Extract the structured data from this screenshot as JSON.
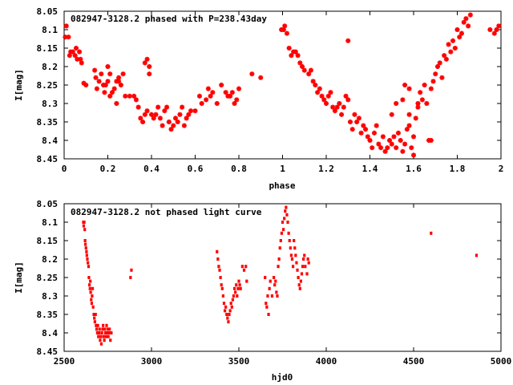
{
  "chart_data": [
    {
      "type": "scatter",
      "title": "082947-3128.2 phased with P=238.43day",
      "xlabel": "phase",
      "ylabel": "I[mag]",
      "xlim": [
        0,
        2
      ],
      "ylim": [
        8.45,
        8.05
      ],
      "y_inverted": true,
      "xticks": [
        "0",
        "0.2",
        "0.4",
        "0.6",
        "0.8",
        "1",
        "1.2",
        "1.4",
        "1.6",
        "1.8",
        "2"
      ],
      "yticks": [
        "8.05",
        "8.1",
        "8.15",
        "8.2",
        "8.25",
        "8.3",
        "8.35",
        "8.4",
        "8.45"
      ],
      "marker": "star",
      "color": "#ff0000",
      "grid": false,
      "x": [
        0.005,
        0.01,
        0.02,
        0.03,
        0.025,
        0.04,
        0.05,
        0.055,
        0.06,
        0.07,
        0.075,
        0.08,
        0.09,
        0.1,
        0.14,
        0.145,
        0.15,
        0.16,
        0.17,
        0.18,
        0.185,
        0.19,
        0.2,
        0.21,
        0.22,
        0.23,
        0.24,
        0.25,
        0.26,
        0.27,
        0.28,
        0.2,
        0.21,
        0.24,
        0.25,
        0.3,
        0.32,
        0.33,
        0.34,
        0.35,
        0.36,
        0.37,
        0.38,
        0.37,
        0.38,
        0.39,
        0.39,
        0.4,
        0.41,
        0.42,
        0.43,
        0.44,
        0.45,
        0.46,
        0.47,
        0.48,
        0.49,
        0.5,
        0.51,
        0.52,
        0.53,
        0.54,
        0.55,
        0.56,
        0.57,
        0.58,
        0.6,
        0.62,
        0.63,
        0.65,
        0.66,
        0.67,
        0.68,
        0.7,
        0.72,
        0.74,
        0.75,
        0.76,
        0.77,
        0.78,
        0.79,
        0.8,
        0.86,
        0.9,
        0.995,
        1.005,
        1.01,
        1.02,
        1.03,
        1.04,
        1.05,
        1.06,
        1.07,
        1.08,
        1.09,
        1.1,
        1.12,
        1.13,
        1.14,
        1.15,
        1.16,
        1.17,
        1.18,
        1.19,
        1.2,
        1.21,
        1.22,
        1.23,
        1.24,
        1.25,
        1.26,
        1.27,
        1.28,
        1.29,
        1.3,
        1.31,
        1.32,
        1.33,
        1.34,
        1.35,
        1.36,
        1.37,
        1.38,
        1.39,
        1.4,
        1.41,
        1.42,
        1.43,
        1.44,
        1.45,
        1.46,
        1.47,
        1.48,
        1.49,
        1.5,
        1.51,
        1.52,
        1.53,
        1.54,
        1.55,
        1.56,
        1.57,
        1.58,
        1.59,
        1.6,
        1.61,
        1.62,
        1.63,
        1.64,
        1.65,
        1.66,
        1.67,
        1.68,
        1.69,
        1.7,
        1.71,
        1.72,
        1.73,
        1.74,
        1.75,
        1.76,
        1.77,
        1.78,
        1.79,
        1.8,
        1.81,
        1.82,
        1.83,
        1.84,
        1.85,
        1.86,
        1.95,
        1.97,
        1.98,
        1.99,
        1.3,
        1.5,
        1.52,
        1.55,
        1.58,
        1.6,
        1.62,
        1.58,
        1.56,
        1.68
      ],
      "y": [
        8.12,
        8.09,
        8.12,
        8.16,
        8.17,
        8.16,
        8.17,
        8.15,
        8.18,
        8.16,
        8.18,
        8.19,
        8.245,
        8.25,
        8.21,
        8.23,
        8.26,
        8.24,
        8.22,
        8.25,
        8.27,
        8.25,
        8.24,
        8.22,
        8.27,
        8.26,
        8.24,
        8.23,
        8.25,
        8.22,
        8.28,
        8.2,
        8.28,
        8.3,
        8.24,
        8.28,
        8.28,
        8.29,
        8.31,
        8.34,
        8.35,
        8.33,
        8.32,
        8.19,
        8.18,
        8.2,
        8.22,
        8.33,
        8.34,
        8.33,
        8.31,
        8.34,
        8.36,
        8.32,
        8.31,
        8.35,
        8.37,
        8.36,
        8.34,
        8.35,
        8.33,
        8.31,
        8.36,
        8.34,
        8.33,
        8.32,
        8.32,
        8.28,
        8.3,
        8.29,
        8.26,
        8.28,
        8.27,
        8.3,
        8.25,
        8.27,
        8.28,
        8.28,
        8.27,
        8.3,
        8.29,
        8.26,
        8.22,
        8.23,
        8.1,
        8.1,
        8.09,
        8.11,
        8.15,
        8.17,
        8.16,
        8.16,
        8.17,
        8.19,
        8.2,
        8.21,
        8.22,
        8.21,
        8.24,
        8.25,
        8.27,
        8.26,
        8.28,
        8.29,
        8.3,
        8.28,
        8.27,
        8.31,
        8.32,
        8.31,
        8.3,
        8.33,
        8.31,
        8.28,
        8.29,
        8.35,
        8.37,
        8.33,
        8.35,
        8.34,
        8.38,
        8.36,
        8.37,
        8.39,
        8.4,
        8.42,
        8.38,
        8.36,
        8.41,
        8.42,
        8.39,
        8.43,
        8.42,
        8.4,
        8.41,
        8.39,
        8.42,
        8.38,
        8.4,
        8.43,
        8.41,
        8.37,
        8.36,
        8.42,
        8.39,
        8.34,
        8.31,
        8.27,
        8.29,
        8.25,
        8.3,
        8.4,
        8.26,
        8.24,
        8.22,
        8.2,
        8.19,
        8.23,
        8.17,
        8.18,
        8.14,
        8.16,
        8.13,
        8.15,
        8.1,
        8.12,
        8.11,
        8.08,
        8.07,
        8.09,
        8.06,
        8.1,
        8.11,
        8.1,
        8.09,
        8.13,
        8.33,
        8.3,
        8.29,
        8.33,
        8.44,
        8.3,
        8.26,
        8.25,
        8.4
      ]
    },
    {
      "type": "scatter",
      "title": "082947-3128.2 not phased light curve",
      "xlabel": "hjd0",
      "ylabel": "I[mag]",
      "xlim": [
        2500,
        5000
      ],
      "ylim": [
        8.45,
        8.05
      ],
      "y_inverted": true,
      "xticks": [
        "2500",
        "3000",
        "3500",
        "4000",
        "4500",
        "5000"
      ],
      "yticks": [
        "8.05",
        "8.1",
        "8.15",
        "8.2",
        "8.25",
        "8.3",
        "8.35",
        "8.4",
        "8.45"
      ],
      "marker": "dot",
      "color": "#ff0000",
      "grid": false,
      "x": [
        2610,
        2612,
        2615,
        2618,
        2620,
        2622,
        2625,
        2628,
        2630,
        2633,
        2636,
        2640,
        2642,
        2645,
        2648,
        2650,
        2652,
        2655,
        2658,
        2660,
        2663,
        2666,
        2670,
        2673,
        2676,
        2680,
        2683,
        2686,
        2690,
        2693,
        2696,
        2700,
        2703,
        2706,
        2710,
        2713,
        2716,
        2720,
        2723,
        2726,
        2730,
        2733,
        2736,
        2740,
        2743,
        2746,
        2750,
        2753,
        2756,
        2760,
        2765,
        2770,
        2880,
        2885,
        3375,
        3380,
        3385,
        3390,
        3395,
        3400,
        3405,
        3410,
        3415,
        3420,
        3425,
        3430,
        3435,
        3440,
        3445,
        3450,
        3455,
        3460,
        3465,
        3470,
        3475,
        3480,
        3485,
        3490,
        3495,
        3500,
        3505,
        3510,
        3520,
        3530,
        3540,
        3545,
        3650,
        3655,
        3660,
        3665,
        3670,
        3675,
        3680,
        3690,
        3700,
        3705,
        3710,
        3715,
        3720,
        3725,
        3730,
        3735,
        3740,
        3745,
        3750,
        3755,
        3760,
        3765,
        3770,
        3775,
        3780,
        3785,
        3790,
        3795,
        3800,
        3805,
        3810,
        3815,
        3820,
        3825,
        3830,
        3835,
        3840,
        3845,
        3850,
        3855,
        3860,
        3865,
        3870,
        3875,
        3880,
        3890,
        3895,
        3900,
        4600,
        4860
      ],
      "y": [
        8.1,
        8.11,
        8.1,
        8.12,
        8.15,
        8.16,
        8.17,
        8.18,
        8.19,
        8.2,
        8.21,
        8.22,
        8.25,
        8.27,
        8.28,
        8.26,
        8.29,
        8.31,
        8.32,
        8.3,
        8.28,
        8.33,
        8.35,
        8.36,
        8.37,
        8.35,
        8.38,
        8.39,
        8.4,
        8.38,
        8.41,
        8.4,
        8.39,
        8.42,
        8.41,
        8.43,
        8.4,
        8.39,
        8.38,
        8.41,
        8.42,
        8.39,
        8.4,
        8.41,
        8.38,
        8.4,
        8.39,
        8.41,
        8.4,
        8.39,
        8.42,
        8.4,
        8.25,
        8.23,
        8.18,
        8.2,
        8.22,
        8.23,
        8.25,
        8.27,
        8.28,
        8.3,
        8.32,
        8.34,
        8.33,
        8.35,
        8.36,
        8.37,
        8.35,
        8.34,
        8.32,
        8.33,
        8.31,
        8.3,
        8.28,
        8.29,
        8.27,
        8.3,
        8.28,
        8.26,
        8.27,
        8.28,
        8.22,
        8.23,
        8.22,
        8.26,
        8.25,
        8.32,
        8.33,
        8.3,
        8.35,
        8.28,
        8.26,
        8.3,
        8.25,
        8.27,
        8.26,
        8.29,
        8.3,
        8.22,
        8.2,
        8.17,
        8.15,
        8.13,
        8.1,
        8.12,
        8.09,
        8.07,
        8.06,
        8.08,
        8.1,
        8.13,
        8.15,
        8.17,
        8.19,
        8.2,
        8.22,
        8.15,
        8.17,
        8.19,
        8.21,
        8.23,
        8.25,
        8.27,
        8.28,
        8.26,
        8.24,
        8.22,
        8.2,
        8.19,
        8.22,
        8.24,
        8.2,
        8.21,
        8.13,
        8.19
      ]
    }
  ]
}
